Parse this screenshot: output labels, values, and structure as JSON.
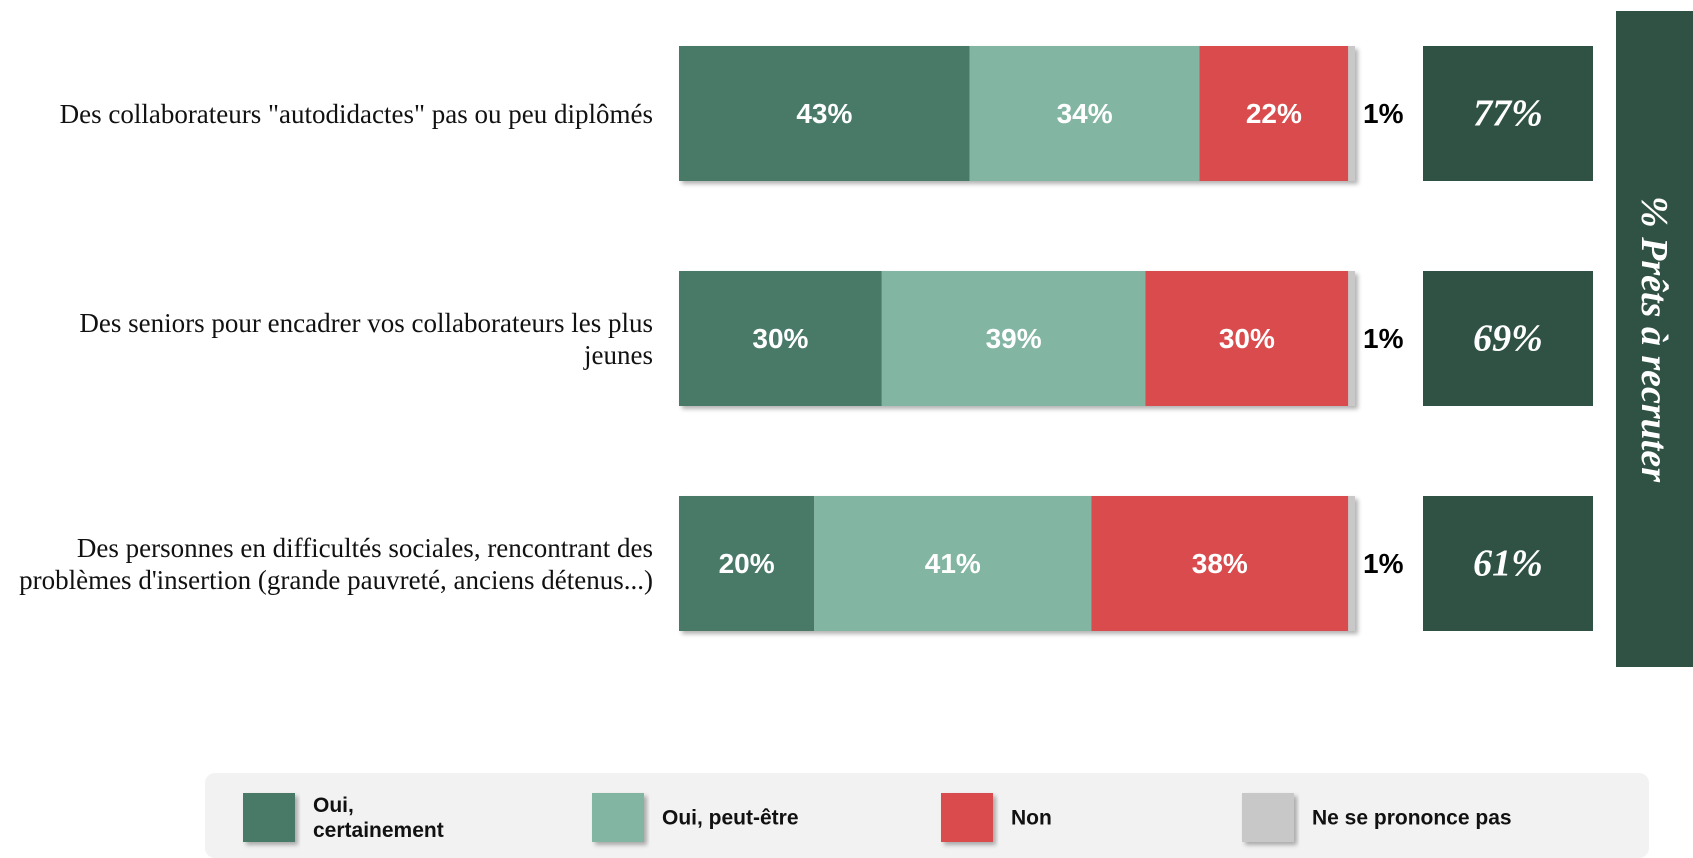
{
  "chart_data": {
    "type": "stacked-bar-horizontal",
    "categories": [
      "Des collaborateurs \"autodidactes\" pas ou peu diplômés",
      "Des seniors pour encadrer vos collaborateurs les plus jeunes",
      "Des personnes en difficultés sociales, rencontrant des problèmes d'insertion (grande pauvreté, anciens détenus...)"
    ],
    "xlim": [
      0,
      100
    ],
    "series": [
      {
        "name": "Oui, certainement",
        "color": "#4a7a68",
        "values": [
          43,
          30,
          20
        ],
        "value_labels": [
          "43%",
          "30%",
          "20%"
        ]
      },
      {
        "name": "Oui, peut-être",
        "color": "#82b5a2",
        "values": [
          34,
          39,
          41
        ],
        "value_labels": [
          "34%",
          "39%",
          "41%"
        ]
      },
      {
        "name": "Non",
        "color": "#d94b4e",
        "values": [
          22,
          30,
          38
        ],
        "value_labels": [
          "22%",
          "30%",
          "38%"
        ]
      },
      {
        "name": "Ne se prononce pas",
        "color": "#c8c8c8",
        "values": [
          1,
          1,
          1
        ],
        "value_labels": [
          "1%",
          "1%",
          "1%"
        ]
      }
    ],
    "summary": {
      "title": "% Prêts à recruter",
      "color": "#2f5244",
      "values": [
        77,
        69,
        61
      ],
      "value_labels": [
        "77%",
        "69%",
        "61%"
      ]
    }
  }
}
